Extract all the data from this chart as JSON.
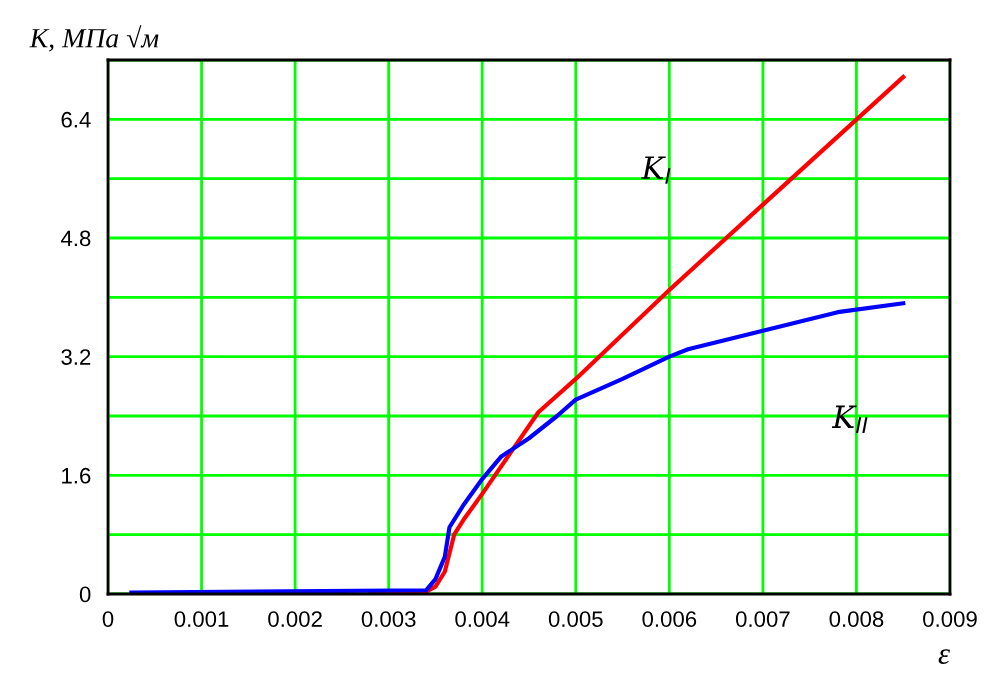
{
  "chart_data": {
    "type": "line",
    "xlabel": "ε",
    "ylabel": "K, МПа √м",
    "xlim": [
      0,
      0.009
    ],
    "ylim": [
      0,
      7.2
    ],
    "xticks": [
      0,
      0.001,
      0.002,
      0.003,
      0.004,
      0.005,
      0.006,
      0.007,
      0.008,
      0.009
    ],
    "yticks": [
      0,
      {
        "value": 0.8,
        "label": null
      },
      1.6,
      {
        "value": 2.4,
        "label": null
      },
      3.2,
      {
        "value": 4.0,
        "label": null
      },
      4.8,
      {
        "value": 5.6,
        "label": null
      },
      6.4,
      {
        "value": 7.2,
        "label": null
      }
    ],
    "grid": true,
    "marker": "none",
    "line_style": "solid",
    "series": [
      {
        "name": "K$_{I}$",
        "color": "#ff0000",
        "x": [
          0.0028,
          0.0034,
          0.0035,
          0.0036,
          0.0037,
          0.0038,
          0.004,
          0.0043,
          0.0046,
          0.005,
          0.006,
          0.007,
          0.0085
        ],
        "values": [
          0.03,
          0.03,
          0.1,
          0.3,
          0.8,
          1.0,
          1.35,
          1.9,
          2.45,
          2.9,
          4.1,
          5.25,
          6.97
        ]
      },
      {
        "name": "K$_{II}$",
        "color": "#0000ff",
        "x": [
          0.00025,
          0.0034,
          0.0035,
          0.0036,
          0.00365,
          0.0038,
          0.004,
          0.0042,
          0.0045,
          0.0048,
          0.005,
          0.0055,
          0.006,
          0.0062,
          0.007,
          0.0078,
          0.0085
        ],
        "values": [
          0.02,
          0.05,
          0.2,
          0.5,
          0.9,
          1.2,
          1.55,
          1.85,
          2.1,
          2.4,
          2.62,
          2.9,
          3.2,
          3.3,
          3.55,
          3.8,
          3.92
        ]
      }
    ]
  }
}
